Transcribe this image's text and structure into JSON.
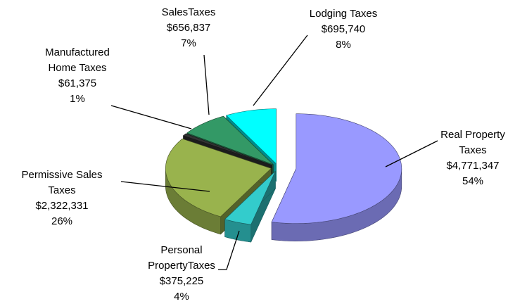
{
  "chart_data": {
    "type": "pie3d",
    "categories": [
      "Real Property Taxes",
      "Personal PropertyTaxes",
      "Permissive Sales Taxes",
      "Manufactured Home Taxes",
      "SalesTaxes",
      "Lodging Taxes"
    ],
    "values": [
      4771347,
      375225,
      2322331,
      61375,
      656837,
      695740
    ],
    "value_labels": [
      "$4,771,347",
      "$375,225",
      "$2,322,331",
      "$61,375",
      "$656,837",
      "$695,740"
    ],
    "percents": [
      54,
      4,
      26,
      1,
      7,
      8
    ],
    "percent_labels": [
      "54%",
      "4%",
      "26%",
      "1%",
      "7%",
      "8%"
    ],
    "colors": [
      "#9999ff",
      "#33cccc",
      "#99b34d",
      "#333333",
      "#339966",
      "#00ffff"
    ]
  }
}
